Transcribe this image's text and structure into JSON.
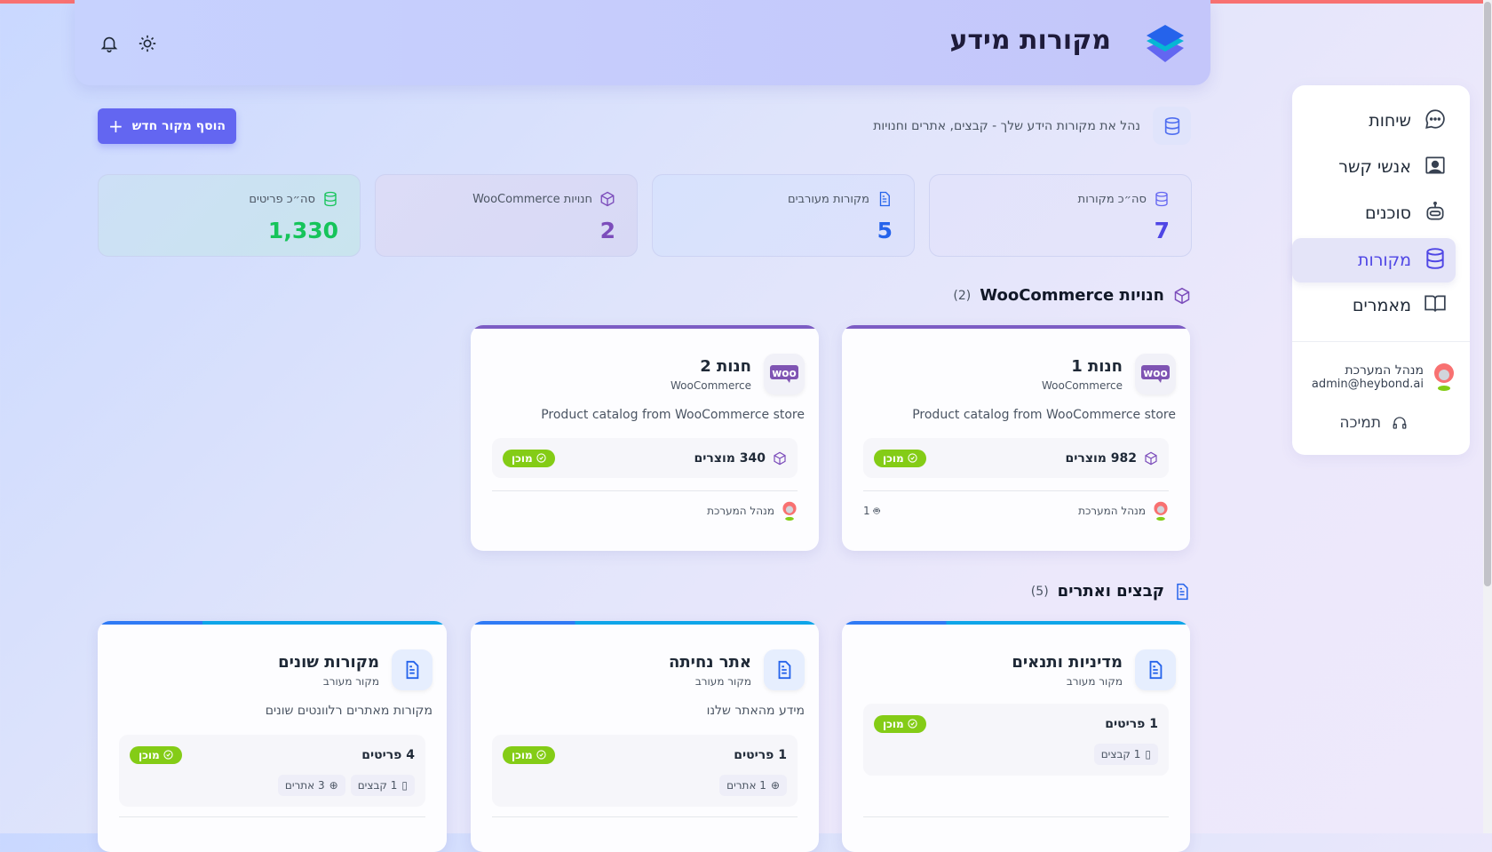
{
  "header": {
    "title": "מקורות מידע",
    "icons": [
      "bell-icon",
      "sun-icon",
      "layers-logo"
    ]
  },
  "sidebar": {
    "items": [
      {
        "label": "שיחות",
        "icon": "chat-icon"
      },
      {
        "label": "אנשי קשר",
        "icon": "contact-icon"
      },
      {
        "label": "סוכנים",
        "icon": "robot-icon"
      },
      {
        "label": "מקורות",
        "icon": "database-icon",
        "active": true
      },
      {
        "label": "מאמרים",
        "icon": "book-icon"
      }
    ],
    "user": {
      "name": "מנהל המערכת",
      "email": "admin@heybond.ai"
    },
    "support": "תמיכה"
  },
  "subtitle": "נהל את מקורות הידע שלך - קבצים, אתרים וחנויות",
  "add_button": "הוסף מקור חדש",
  "stats": [
    {
      "label": "סה״כ מקורות",
      "value": "7",
      "color": "#4f46e5"
    },
    {
      "label": "מקורות מעורבים",
      "value": "5",
      "color": "#2563eb"
    },
    {
      "label": "חנויות WooCommerce",
      "value": "2",
      "color": "#7c4dbb"
    },
    {
      "label": "סה״כ פריטים",
      "value": "1,330",
      "color": "#16c45a"
    }
  ],
  "woo_section": {
    "title": "חנויות WooCommerce",
    "count": "(2)",
    "cards": [
      {
        "title": "חנות 1",
        "subtitle": "WooCommerce",
        "description": "Product catalog from WooCommerce store",
        "count": "982 מוצרים",
        "status": "מוכן",
        "owner": "מנהל המערכת",
        "agents": "1"
      },
      {
        "title": "חנות 2",
        "subtitle": "WooCommerce",
        "description": "Product catalog from WooCommerce store",
        "count": "340 מוצרים",
        "status": "מוכן",
        "owner": "מנהל המערכת",
        "agents": ""
      }
    ]
  },
  "files_section": {
    "title": "קבצים ואתרים",
    "count": "(5)",
    "cards": [
      {
        "title": "מדיניות ותנאים",
        "subtitle": "מקור מעורב",
        "description": "",
        "count": "1 פריטים",
        "status": "מוכן",
        "chips": [
          "1 קבצים"
        ]
      },
      {
        "title": "אתר נחיתה",
        "subtitle": "מקור מעורב",
        "description": "מידע מהאתר שלנו",
        "count": "1 פריטים",
        "status": "מוכן",
        "chips": [
          "1 אתרים"
        ]
      },
      {
        "title": "מקורות שונים",
        "subtitle": "מקור מעורב",
        "description": "מקורות מאתרים רלוונטים שונים",
        "count": "4 פריטים",
        "status": "מוכן",
        "chips": [
          "1 קבצים",
          "3 אתרים"
        ]
      }
    ]
  }
}
